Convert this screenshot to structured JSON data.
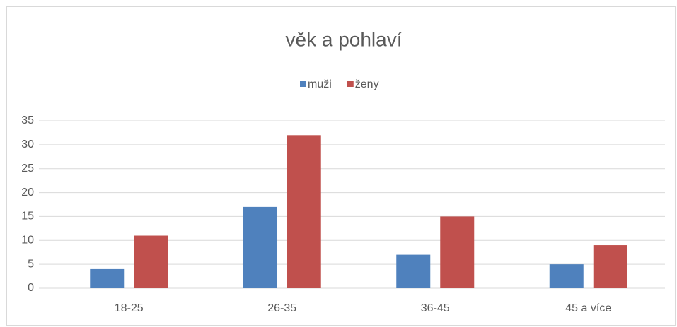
{
  "chart_data": {
    "type": "bar",
    "title": "věk a pohlaví",
    "categories": [
      "18-25",
      "26-35",
      "36-45",
      "45 a více"
    ],
    "series": [
      {
        "name": "muži",
        "color": "#4f81bd",
        "values": [
          4,
          17,
          7,
          5
        ]
      },
      {
        "name": "ženy",
        "color": "#c0504d",
        "values": [
          11,
          32,
          15,
          9
        ]
      }
    ],
    "ylim": [
      0,
      35
    ],
    "yticks": [
      0,
      5,
      10,
      15,
      20,
      25,
      30,
      35
    ],
    "grid": true,
    "legend": "top"
  }
}
